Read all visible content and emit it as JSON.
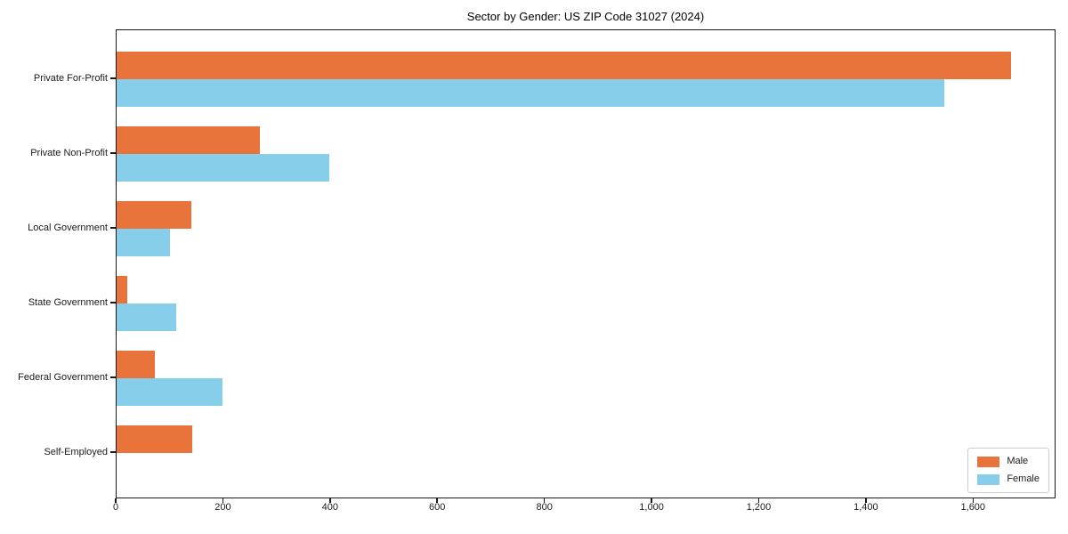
{
  "chart_data": {
    "type": "bar",
    "orientation": "horizontal",
    "title": "Sector by Gender: US ZIP Code 31027 (2024)",
    "categories": [
      "Private For-Profit",
      "Private Non-Profit",
      "Local Government",
      "State Government",
      "Federal Government",
      "Self-Employed"
    ],
    "series": [
      {
        "name": "Male",
        "color": "#E8743B",
        "values": [
          1670,
          267,
          139,
          20,
          71,
          142
        ]
      },
      {
        "name": "Female",
        "color": "#87CEEB",
        "values": [
          1545,
          397,
          99,
          112,
          198,
          0
        ]
      }
    ],
    "xlabel": "",
    "ylabel": "",
    "xlim": [
      0,
      1754
    ],
    "xticks": [
      0,
      200,
      400,
      600,
      800,
      1000,
      1200,
      1400,
      1600
    ],
    "xtick_labels": [
      "0",
      "200",
      "400",
      "600",
      "800",
      "1,000",
      "1,200",
      "1,400",
      "1,600"
    ],
    "grid": false,
    "legend": {
      "position": "lower right",
      "labels": [
        "Male",
        "Female"
      ]
    }
  }
}
